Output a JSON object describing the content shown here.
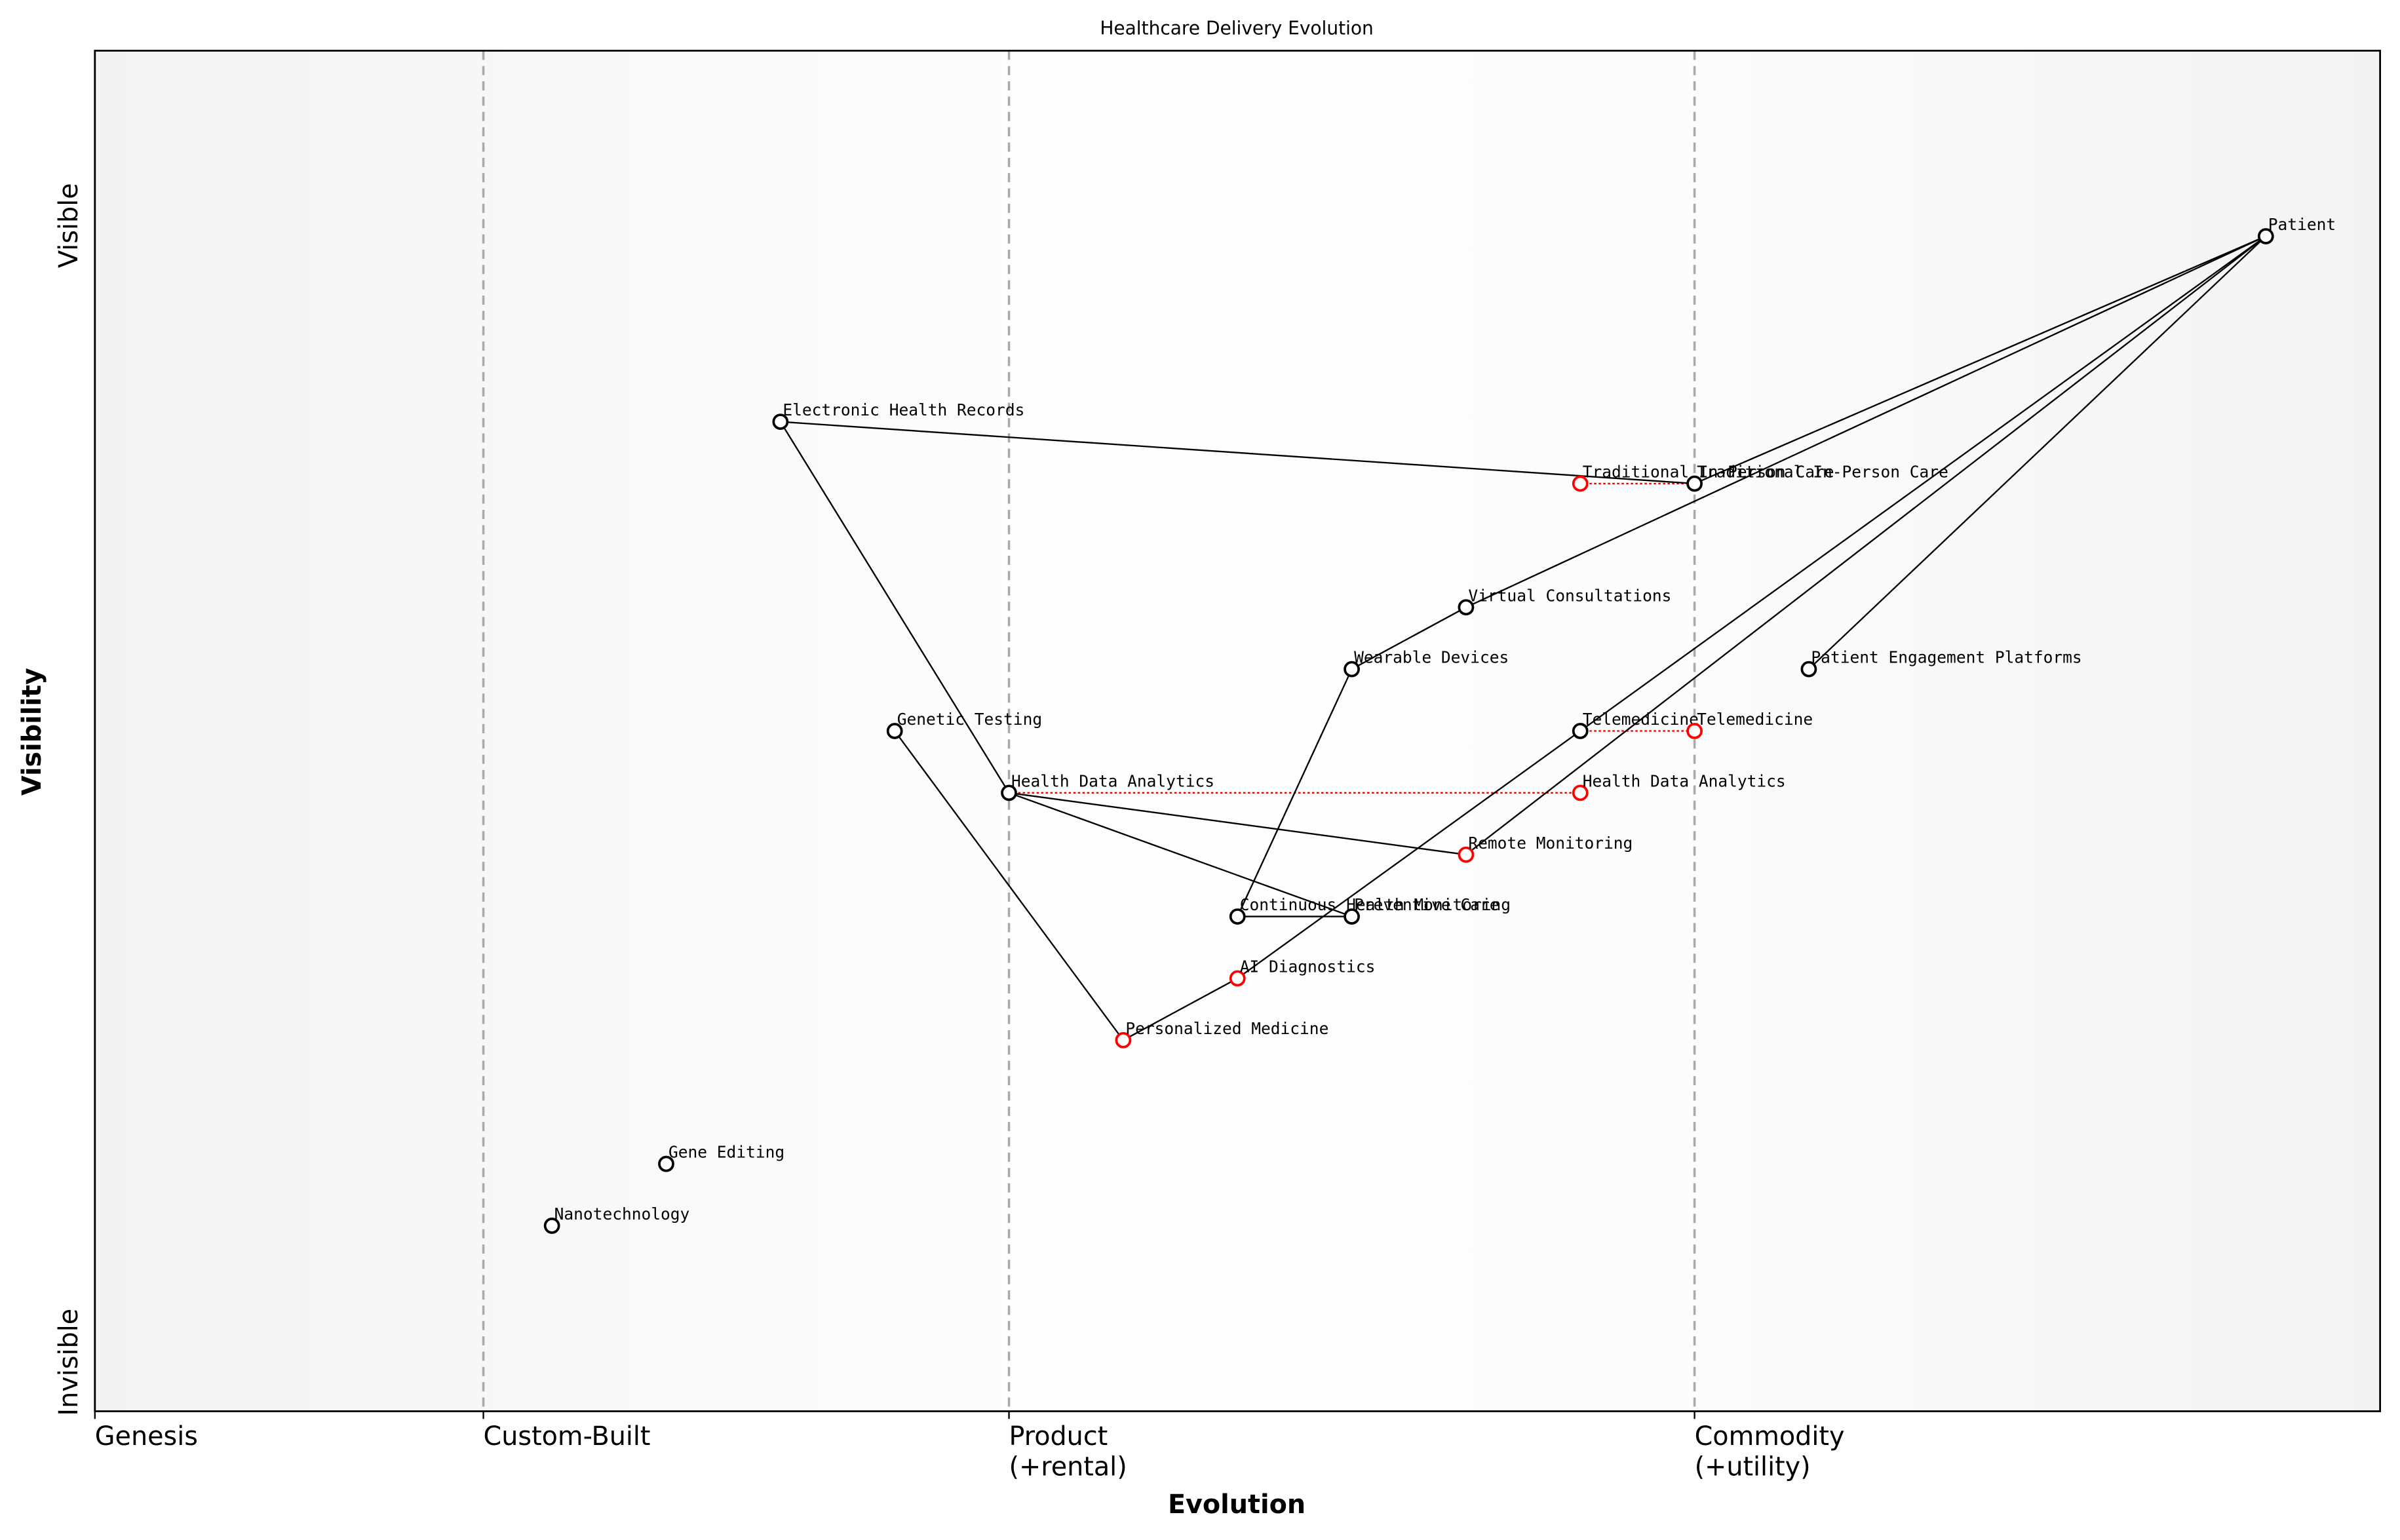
{
  "chart_data": {
    "type": "wardley",
    "title": "Healthcare Delivery Evolution",
    "x_label": "Evolution",
    "y_label": "Visibility",
    "visibility_labels": [
      "Visible",
      "Invisible"
    ],
    "xlim": [
      0,
      1
    ],
    "ylim": [
      -0.05,
      1.05
    ],
    "xticks": [
      {
        "value": 0,
        "label": "Genesis"
      },
      {
        "value": 0.17,
        "label": "Custom-Built"
      },
      {
        "value": 0.4,
        "label": "Product\n(+rental)"
      },
      {
        "value": 0.7,
        "label": "Commodity\n(+utility)"
      }
    ],
    "nodes": [
      {
        "name": "Patient",
        "x": 0.95,
        "y": 0.9,
        "color": "#000000"
      },
      {
        "name": "Traditional In-Person Care",
        "x": 0.7,
        "y": 0.7,
        "color": "#000000"
      },
      {
        "name": "Traditional In-Person Care",
        "x": 0.65,
        "y": 0.7,
        "color": "#ff0000"
      },
      {
        "name": "Electronic Health Records",
        "x": 0.3,
        "y": 0.75,
        "color": "#000000"
      },
      {
        "name": "Virtual Consultations",
        "x": 0.6,
        "y": 0.6,
        "color": "#000000"
      },
      {
        "name": "Wearable Devices",
        "x": 0.55,
        "y": 0.55,
        "color": "#000000"
      },
      {
        "name": "Patient Engagement Platforms",
        "x": 0.75,
        "y": 0.55,
        "color": "#000000"
      },
      {
        "name": "Genetic Testing",
        "x": 0.35,
        "y": 0.5,
        "color": "#000000"
      },
      {
        "name": "Telemedicine",
        "x": 0.65,
        "y": 0.5,
        "color": "#000000"
      },
      {
        "name": "Telemedicine",
        "x": 0.7,
        "y": 0.5,
        "color": "#ff0000"
      },
      {
        "name": "Health Data Analytics",
        "x": 0.4,
        "y": 0.45,
        "color": "#000000"
      },
      {
        "name": "Health Data Analytics",
        "x": 0.65,
        "y": 0.45,
        "color": "#ff0000"
      },
      {
        "name": "Remote Monitoring",
        "x": 0.6,
        "y": 0.4,
        "color": "#ff0000"
      },
      {
        "name": "Continuous Health Monitoring",
        "x": 0.5,
        "y": 0.35,
        "color": "#000000"
      },
      {
        "name": "Preventive Care",
        "x": 0.55,
        "y": 0.35,
        "color": "#000000"
      },
      {
        "name": "AI Diagnostics",
        "x": 0.5,
        "y": 0.3,
        "color": "#ff0000"
      },
      {
        "name": "Personalized Medicine",
        "x": 0.45,
        "y": 0.25,
        "color": "#ff0000"
      },
      {
        "name": "Gene Editing",
        "x": 0.25,
        "y": 0.15,
        "color": "#000000"
      },
      {
        "name": "Nanotechnology",
        "x": 0.2,
        "y": 0.1,
        "color": "#000000"
      }
    ],
    "links": [
      [
        0,
        1
      ],
      [
        0,
        4
      ],
      [
        0,
        8
      ],
      [
        0,
        12
      ],
      [
        0,
        6
      ],
      [
        3,
        1
      ],
      [
        3,
        10
      ],
      [
        4,
        5
      ],
      [
        5,
        13
      ],
      [
        13,
        14
      ],
      [
        10,
        12
      ],
      [
        10,
        14
      ],
      [
        7,
        16
      ],
      [
        16,
        15
      ],
      [
        15,
        8
      ]
    ],
    "evolutions": [
      [
        2,
        1
      ],
      [
        8,
        9
      ],
      [
        10,
        11
      ]
    ]
  }
}
